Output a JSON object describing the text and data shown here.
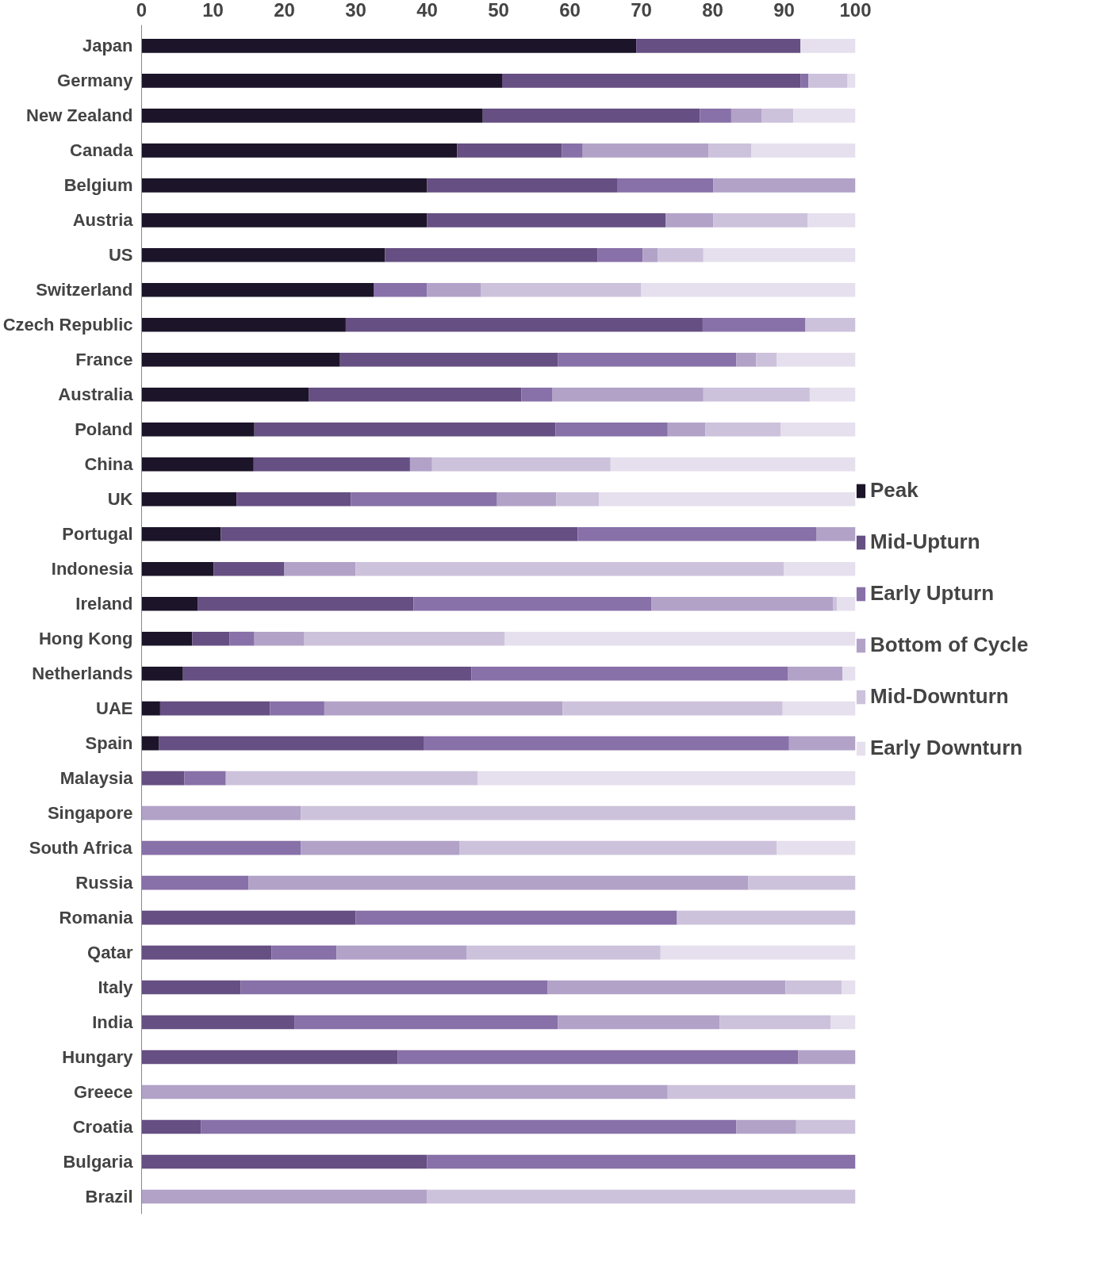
{
  "chart_data": {
    "type": "bar",
    "orientation": "horizontal",
    "stacked": true,
    "legend": "right",
    "grid": false,
    "categories": [
      "Japan",
      "Germany",
      "New Zealand",
      "Canada",
      "Belgium",
      "Austria",
      "US",
      "Switzerland",
      "Czech Republic",
      "France",
      "Australia",
      "Poland",
      "China",
      "UK",
      "Portugal",
      "Indonesia",
      "Ireland",
      "Hong Kong",
      "Netherlands",
      "UAE",
      "Spain",
      "Malaysia",
      "Singapore",
      "South Africa",
      "Russia",
      "Romania",
      "Qatar",
      "Italy",
      "India",
      "Hungary",
      "Greece",
      "Croatia",
      "Bulgaria",
      "Brazil"
    ],
    "xlim": [
      0,
      100
    ],
    "xticks": [
      0,
      10,
      20,
      30,
      40,
      50,
      60,
      70,
      80,
      90,
      100
    ],
    "series": [
      {
        "name": "Peak",
        "color": "#1c1428",
        "values": [
          69.3,
          50.5,
          47.8,
          44.2,
          40.0,
          40.0,
          34.1,
          32.5,
          28.6,
          27.8,
          23.4,
          15.8,
          15.7,
          13.3,
          11.1,
          10.1,
          7.9,
          7.1,
          5.8,
          2.6,
          2.4,
          null,
          null,
          null,
          null,
          null,
          null,
          null,
          null,
          null,
          null,
          null,
          null,
          null
        ]
      },
      {
        "name": "Mid-Upturn",
        "color": "#664f82",
        "values": [
          23.0,
          41.8,
          30.4,
          14.7,
          26.7,
          33.4,
          29.8,
          null,
          50.0,
          30.5,
          29.8,
          42.2,
          21.9,
          16.0,
          50.0,
          9.9,
          30.2,
          5.2,
          40.4,
          15.4,
          37.1,
          6.0,
          null,
          null,
          null,
          30.0,
          18.2,
          13.9,
          21.4,
          35.9,
          null,
          8.3,
          40.0,
          null
        ]
      },
      {
        "name": "Early Upturn",
        "color": "#8870a8",
        "values": [
          null,
          1.1,
          4.4,
          2.9,
          13.4,
          null,
          6.3,
          7.5,
          14.4,
          25.0,
          4.3,
          15.7,
          null,
          20.5,
          33.4,
          null,
          33.3,
          3.5,
          44.3,
          7.6,
          51.2,
          5.8,
          null,
          22.3,
          15.0,
          45.0,
          9.1,
          43.0,
          36.9,
          56.1,
          null,
          75.0,
          60.0,
          null
        ]
      },
      {
        "name": "Bottom of Cycle",
        "color": "#b2a2c8",
        "values": [
          null,
          null,
          4.3,
          17.6,
          19.9,
          6.7,
          2.1,
          7.5,
          null,
          2.8,
          21.2,
          5.3,
          3.1,
          8.3,
          5.5,
          10.0,
          25.5,
          7.0,
          7.7,
          33.4,
          9.3,
          null,
          22.3,
          22.2,
          70.0,
          null,
          18.2,
          33.3,
          22.7,
          8.0,
          73.7,
          8.4,
          null,
          40.0
        ]
      },
      {
        "name": "Mid-Downturn",
        "color": "#cdc2dc",
        "values": [
          null,
          5.5,
          4.4,
          6.0,
          null,
          13.2,
          6.4,
          22.5,
          7.0,
          2.9,
          14.9,
          10.5,
          25.0,
          6.0,
          null,
          60.0,
          0.5,
          28.1,
          null,
          30.8,
          null,
          35.3,
          77.7,
          44.5,
          15.0,
          25.0,
          27.2,
          7.9,
          15.5,
          null,
          26.3,
          8.3,
          null,
          60.0
        ]
      },
      {
        "name": "Early Downturn",
        "color": "#e6e0ee",
        "values": [
          7.7,
          1.1,
          8.7,
          14.6,
          null,
          6.7,
          21.3,
          30.0,
          null,
          11.0,
          6.4,
          10.5,
          34.3,
          35.9,
          null,
          10.0,
          2.6,
          49.1,
          1.8,
          10.2,
          null,
          52.9,
          null,
          11.0,
          null,
          null,
          27.3,
          1.9,
          3.5,
          null,
          null,
          null,
          null,
          null
        ]
      }
    ]
  }
}
